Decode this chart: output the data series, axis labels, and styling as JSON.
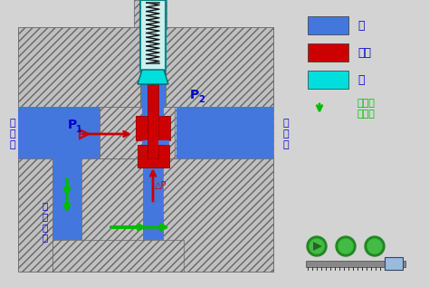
{
  "bg_color": "#d3d3d3",
  "hatch_fc": "#c0c0c0",
  "hatch_ec": "#666666",
  "oil_blue": "#4477dd",
  "piston_red": "#cc0000",
  "valve_cyan": "#00dddd",
  "spring_bg": "#cceeee",
  "spring_color": "#111111",
  "arrow_red": "#cc0000",
  "arrow_green": "#00bb00",
  "label_blue": "#0000cc",
  "label_green": "#00aa00",
  "legend_blue": "#4477dd",
  "legend_red": "#cc0000",
  "legend_cyan": "#00dddd",
  "p1_label": "P",
  "p2_label": "P",
  "inlet_label": "进\n油\n口",
  "outlet_label": "出\n油\n口",
  "control_label": "控\n制\n油\n路",
  "dp_label": "△P"
}
